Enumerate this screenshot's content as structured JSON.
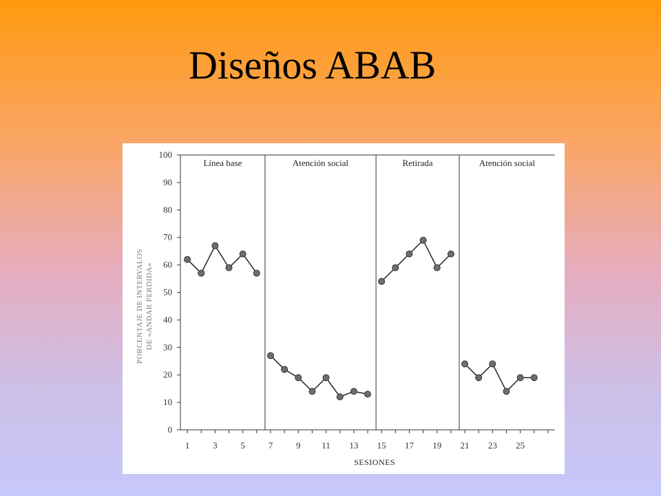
{
  "slide": {
    "title": "Diseños ABAB"
  },
  "chart_data": {
    "type": "line",
    "xlabel": "SESIONES",
    "ylabel_line1": "PORCENTAJE DE INTERVALOS",
    "ylabel_line2": "DE «ANDAR PERDIDA»",
    "ylim": [
      0,
      100
    ],
    "yticks": [
      0,
      10,
      20,
      30,
      40,
      50,
      60,
      70,
      80,
      90,
      100
    ],
    "xlim": [
      0.5,
      27.5
    ],
    "xticks": [
      1,
      3,
      5,
      7,
      9,
      11,
      13,
      15,
      17,
      19,
      21,
      23,
      25
    ],
    "grid": false,
    "phases": [
      {
        "label": "Línea base",
        "x": [
          1,
          2,
          3,
          4,
          5,
          6
        ],
        "values": [
          62,
          57,
          67,
          59,
          64,
          57
        ]
      },
      {
        "label": "Atención social",
        "x": [
          7,
          8,
          9,
          10,
          11,
          12,
          13,
          14
        ],
        "values": [
          27,
          22,
          19,
          14,
          19,
          12,
          14,
          13
        ]
      },
      {
        "label": "Retirada",
        "x": [
          15,
          16,
          17,
          18,
          19,
          20
        ],
        "values": [
          54,
          59,
          64,
          69,
          59,
          64
        ]
      },
      {
        "label": "Atención social",
        "x": [
          21,
          22,
          23,
          24,
          25,
          26
        ],
        "values": [
          24,
          19,
          24,
          14,
          19,
          19
        ]
      }
    ],
    "phase_boundaries": [
      6.6,
      14.6,
      20.6
    ],
    "marker_color": "#6d6d78",
    "line_color": "#222222"
  }
}
